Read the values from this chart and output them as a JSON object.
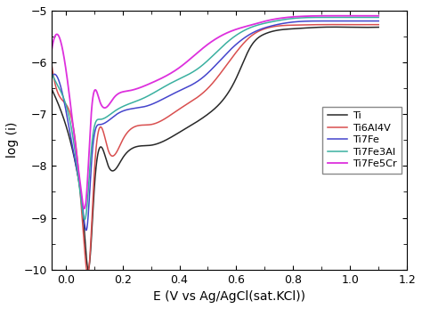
{
  "xlabel": "E (V vs Ag/AgCl(sat.KCl))",
  "ylabel": "log (i)",
  "xlim": [
    -0.05,
    1.2
  ],
  "ylim": [
    -10,
    -5
  ],
  "xticks": [
    0.0,
    0.2,
    0.4,
    0.6,
    0.8,
    1.0,
    1.2
  ],
  "yticks": [
    -10,
    -9,
    -8,
    -7,
    -6,
    -5
  ],
  "legend_labels": [
    "Ti",
    "Ti6Al4V",
    "Ti7Fe",
    "Ti7Fe3Al",
    "Ti7Fe5Cr"
  ],
  "line_colors": [
    "#282828",
    "#d94f4f",
    "#4444cc",
    "#3ab0a0",
    "#dd30dd"
  ],
  "line_widths": [
    1.1,
    1.1,
    1.1,
    1.1,
    1.3
  ],
  "background_color": "#ffffff",
  "font_size": 10,
  "Ti_knots_E": [
    -0.05,
    0.0,
    0.04,
    0.065,
    0.08,
    0.1,
    0.15,
    0.2,
    0.3,
    0.4,
    0.5,
    0.6,
    0.65,
    0.7,
    0.8,
    0.9,
    1.0,
    1.1
  ],
  "Ti_knots_logI": [
    -6.5,
    -7.2,
    -8.1,
    -9.2,
    -10.0,
    -8.5,
    -8.0,
    -7.85,
    -7.6,
    -7.35,
    -7.0,
    -6.3,
    -5.7,
    -5.45,
    -5.35,
    -5.32,
    -5.32,
    -5.32
  ],
  "Ti6Al4V_knots_E": [
    -0.05,
    0.0,
    0.04,
    0.065,
    0.08,
    0.1,
    0.15,
    0.2,
    0.3,
    0.4,
    0.5,
    0.6,
    0.65,
    0.7,
    0.8,
    0.9,
    1.0,
    1.1
  ],
  "Ti6Al4V_knots_logI": [
    -6.0,
    -6.8,
    -7.8,
    -9.5,
    -10.05,
    -8.2,
    -7.7,
    -7.5,
    -7.2,
    -6.9,
    -6.5,
    -5.8,
    -5.5,
    -5.35,
    -5.28,
    -5.27,
    -5.27,
    -5.27
  ],
  "Ti7Fe_knots_E": [
    -0.05,
    0.0,
    0.03,
    0.06,
    0.075,
    0.09,
    0.12,
    0.18,
    0.28,
    0.38,
    0.48,
    0.58,
    0.65,
    0.72,
    0.8,
    0.9,
    1.0,
    1.1
  ],
  "Ti7Fe_knots_logI": [
    -6.3,
    -6.9,
    -7.8,
    -8.8,
    -9.2,
    -8.0,
    -7.2,
    -7.0,
    -6.85,
    -6.6,
    -6.3,
    -5.75,
    -5.45,
    -5.3,
    -5.22,
    -5.2,
    -5.2,
    -5.2
  ],
  "Ti7Fe3Al_knots_E": [
    -0.05,
    0.0,
    0.03,
    0.055,
    0.07,
    0.09,
    0.12,
    0.17,
    0.27,
    0.37,
    0.47,
    0.57,
    0.64,
    0.72,
    0.8,
    0.9,
    1.0,
    1.1
  ],
  "Ti7Fe3Al_knots_logI": [
    -6.2,
    -6.8,
    -7.6,
    -8.7,
    -9.0,
    -7.7,
    -7.1,
    -6.95,
    -6.7,
    -6.4,
    -6.1,
    -5.6,
    -5.35,
    -5.22,
    -5.15,
    -5.13,
    -5.13,
    -5.13
  ],
  "Ti7Fe5Cr_knots_E": [
    -0.05,
    0.01,
    0.03,
    0.055,
    0.07,
    0.09,
    0.12,
    0.17,
    0.22,
    0.3,
    0.4,
    0.5,
    0.58,
    0.65,
    0.72,
    0.8,
    0.9,
    1.0,
    1.1
  ],
  "Ti7Fe5Cr_knots_logI": [
    -5.8,
    -6.5,
    -7.4,
    -8.5,
    -8.75,
    -7.0,
    -6.75,
    -6.68,
    -6.55,
    -6.4,
    -6.1,
    -5.65,
    -5.4,
    -5.28,
    -5.18,
    -5.12,
    -5.1,
    -5.1,
    -5.1
  ]
}
